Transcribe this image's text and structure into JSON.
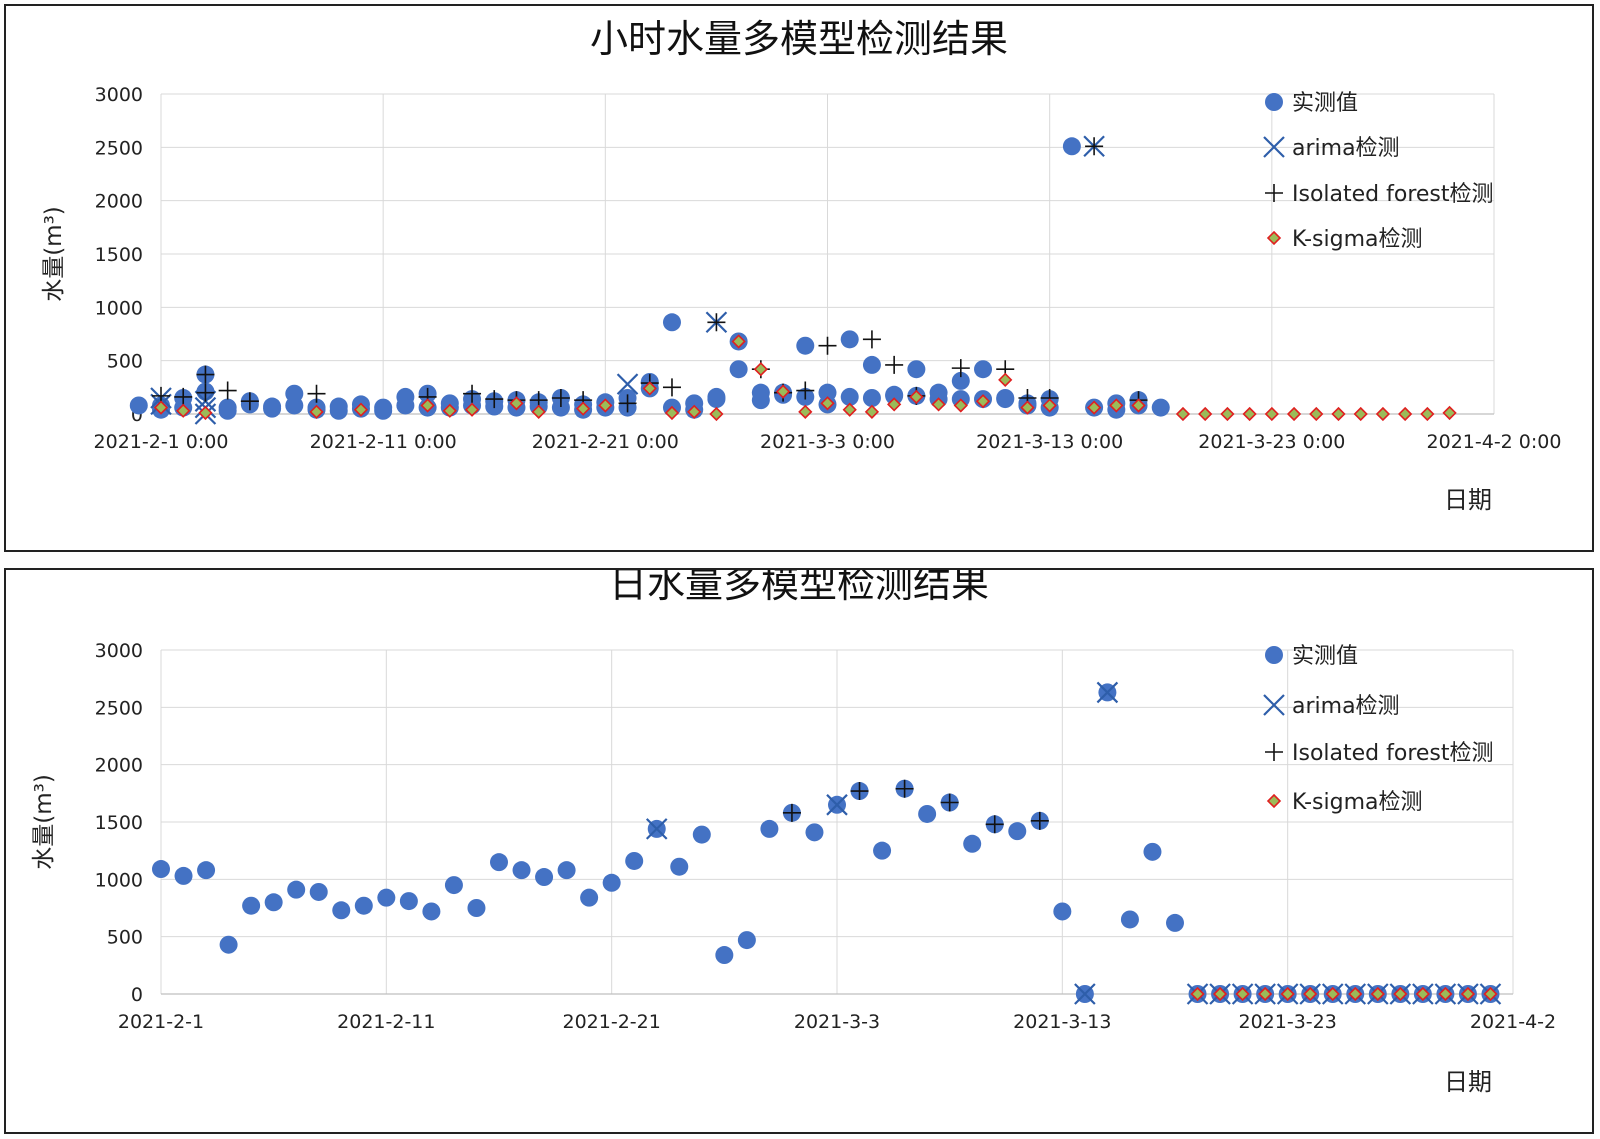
{
  "chart_data": [
    {
      "type": "scatter",
      "title": "小时水量多模型检测结果",
      "ylabel": "水量(m³)",
      "xlabel": "日期",
      "ylim": [
        0,
        3000
      ],
      "yticks": [
        0,
        500,
        1000,
        1500,
        2000,
        2500,
        3000
      ],
      "xticks": [
        "2021-2-1 0:00",
        "2021-2-11 0:00",
        "2021-2-21 0:00",
        "2021-3-3 0:00",
        "2021-3-13 0:00",
        "2021-3-23 0:00",
        "2021-4-2 0:00"
      ],
      "xlim": [
        "2021-02-01",
        "2021-04-02"
      ],
      "grid": true,
      "legend_position": "top-right",
      "legend": [
        "实测值",
        "arima检测",
        "Isolated forest检测",
        "K-sigma检测"
      ],
      "series": [
        {
          "name": "实测值",
          "x": [
            "2021-02-01",
            "2021-02-01",
            "2021-02-02",
            "2021-02-02",
            "2021-02-03",
            "2021-02-03",
            "2021-02-04",
            "2021-02-04",
            "2021-02-05",
            "2021-02-05",
            "2021-02-06",
            "2021-02-06",
            "2021-02-07",
            "2021-02-07",
            "2021-02-08",
            "2021-02-08",
            "2021-02-09",
            "2021-02-09",
            "2021-02-10",
            "2021-02-10",
            "2021-02-11",
            "2021-02-11",
            "2021-02-12",
            "2021-02-12",
            "2021-02-13",
            "2021-02-13",
            "2021-02-14",
            "2021-02-14",
            "2021-02-15",
            "2021-02-15",
            "2021-02-16",
            "2021-02-16",
            "2021-02-17",
            "2021-02-17",
            "2021-02-18",
            "2021-02-18",
            "2021-02-19",
            "2021-02-19",
            "2021-02-20",
            "2021-02-20",
            "2021-02-21",
            "2021-02-21",
            "2021-02-22",
            "2021-02-22",
            "2021-02-23",
            "2021-02-23",
            "2021-02-24",
            "2021-02-24",
            "2021-02-25",
            "2021-02-25",
            "2021-02-26",
            "2021-02-26",
            "2021-02-27",
            "2021-02-27",
            "2021-02-28",
            "2021-02-28",
            "2021-03-01",
            "2021-03-01",
            "2021-03-02",
            "2021-03-02",
            "2021-03-03",
            "2021-03-03",
            "2021-03-04",
            "2021-03-04",
            "2021-03-05",
            "2021-03-05",
            "2021-03-06",
            "2021-03-06",
            "2021-03-07",
            "2021-03-07",
            "2021-03-08",
            "2021-03-08",
            "2021-03-09",
            "2021-03-09",
            "2021-03-10",
            "2021-03-10",
            "2021-03-11",
            "2021-03-11",
            "2021-03-12",
            "2021-03-12",
            "2021-03-13",
            "2021-03-13",
            "2021-03-14",
            "2021-03-15",
            "2021-03-16",
            "2021-03-16",
            "2021-03-17",
            "2021-03-17",
            "2021-03-18",
            "2021-01-31"
          ],
          "values": [
            80,
            40,
            150,
            60,
            210,
            370,
            60,
            30,
            120,
            90,
            70,
            50,
            80,
            190,
            60,
            40,
            70,
            30,
            90,
            50,
            60,
            30,
            80,
            160,
            60,
            190,
            100,
            60,
            140,
            80,
            120,
            70,
            130,
            60,
            110,
            70,
            150,
            60,
            90,
            40,
            110,
            60,
            150,
            60,
            240,
            300,
            60,
            860,
            100,
            40,
            140,
            160,
            680,
            420,
            200,
            130,
            200,
            180,
            160,
            640,
            200,
            90,
            700,
            160,
            150,
            460,
            170,
            180,
            420,
            170,
            200,
            140,
            140,
            310,
            420,
            140,
            150,
            140,
            80,
            100,
            140,
            60,
            2510,
            60,
            100,
            40,
            80,
            130,
            60,
            80
          ]
        },
        {
          "name": "arima检测",
          "x": [
            "2021-02-01",
            "2021-02-01",
            "2021-02-03",
            "2021-02-03",
            "2021-02-03",
            "2021-02-22",
            "2021-02-26",
            "2021-03-15"
          ],
          "values": [
            150,
            90,
            120,
            60,
            0,
            280,
            860,
            2510
          ]
        },
        {
          "name": "Isolated forest检测",
          "x": [
            "2021-02-01",
            "2021-02-02",
            "2021-02-03",
            "2021-02-03",
            "2021-02-04",
            "2021-02-05",
            "2021-02-08",
            "2021-02-13",
            "2021-02-15",
            "2021-02-16",
            "2021-02-17",
            "2021-02-18",
            "2021-02-19",
            "2021-02-20",
            "2021-02-22",
            "2021-02-23",
            "2021-02-24",
            "2021-02-26",
            "2021-02-28",
            "2021-03-01",
            "2021-03-02",
            "2021-03-03",
            "2021-03-05",
            "2021-03-06",
            "2021-03-07",
            "2021-03-09",
            "2021-03-11",
            "2021-03-12",
            "2021-03-13",
            "2021-03-15",
            "2021-03-17"
          ],
          "values": [
            170,
            160,
            200,
            370,
            220,
            120,
            190,
            160,
            190,
            140,
            130,
            130,
            150,
            130,
            100,
            290,
            250,
            860,
            420,
            200,
            220,
            640,
            700,
            460,
            170,
            430,
            420,
            150,
            150,
            2510,
            130
          ]
        },
        {
          "name": "K-sigma检测",
          "x": [
            "2021-02-01",
            "2021-02-02",
            "2021-02-03",
            "2021-02-08",
            "2021-02-10",
            "2021-02-13",
            "2021-02-14",
            "2021-02-15",
            "2021-02-17",
            "2021-02-18",
            "2021-02-20",
            "2021-02-21",
            "2021-02-23",
            "2021-02-24",
            "2021-02-25",
            "2021-02-26",
            "2021-02-27",
            "2021-02-28",
            "2021-03-01",
            "2021-03-02",
            "2021-03-03",
            "2021-03-04",
            "2021-03-05",
            "2021-03-06",
            "2021-03-07",
            "2021-03-08",
            "2021-03-09",
            "2021-03-10",
            "2021-03-11",
            "2021-03-12",
            "2021-03-13",
            "2021-03-15",
            "2021-03-16",
            "2021-03-17",
            "2021-03-19",
            "2021-03-20",
            "2021-03-21",
            "2021-03-22",
            "2021-03-23",
            "2021-03-24",
            "2021-03-25",
            "2021-03-26",
            "2021-03-27",
            "2021-03-28",
            "2021-03-29",
            "2021-03-30",
            "2021-03-31"
          ],
          "values": [
            60,
            30,
            10,
            20,
            40,
            80,
            30,
            40,
            100,
            20,
            50,
            80,
            240,
            10,
            20,
            0,
            680,
            420,
            210,
            20,
            100,
            40,
            20,
            90,
            160,
            90,
            80,
            120,
            320,
            60,
            80,
            60,
            80,
            80,
            0,
            0,
            0,
            0,
            0,
            0,
            0,
            0,
            0,
            0,
            0,
            0,
            10
          ]
        }
      ]
    },
    {
      "type": "scatter",
      "title": "日水量多模型检测结果",
      "ylabel": "水量(m³)",
      "xlabel": "日期",
      "ylim": [
        0,
        3000
      ],
      "yticks": [
        0,
        500,
        1000,
        1500,
        2000,
        2500,
        3000
      ],
      "xticks": [
        "2021-2-1",
        "2021-2-11",
        "2021-2-21",
        "2021-3-3",
        "2021-3-13",
        "2021-3-23",
        "2021-4-2"
      ],
      "xlim": [
        "2021-02-01",
        "2021-04-02"
      ],
      "grid": true,
      "legend_position": "top-right",
      "legend": [
        "实测值",
        "arima检测",
        "Isolated forest检测",
        "K-sigma检测"
      ],
      "series": [
        {
          "name": "实测值",
          "x": [
            "2021-02-01",
            "2021-02-02",
            "2021-02-03",
            "2021-02-04",
            "2021-02-05",
            "2021-02-06",
            "2021-02-07",
            "2021-02-08",
            "2021-02-09",
            "2021-02-10",
            "2021-02-11",
            "2021-02-12",
            "2021-02-13",
            "2021-02-14",
            "2021-02-15",
            "2021-02-16",
            "2021-02-17",
            "2021-02-18",
            "2021-02-19",
            "2021-02-20",
            "2021-02-21",
            "2021-02-22",
            "2021-02-23",
            "2021-02-24",
            "2021-02-25",
            "2021-02-26",
            "2021-02-27",
            "2021-02-28",
            "2021-03-01",
            "2021-03-02",
            "2021-03-03",
            "2021-03-04",
            "2021-03-05",
            "2021-03-06",
            "2021-03-07",
            "2021-03-08",
            "2021-03-09",
            "2021-03-10",
            "2021-03-11",
            "2021-03-12",
            "2021-03-13",
            "2021-03-14",
            "2021-03-15",
            "2021-03-16",
            "2021-03-17",
            "2021-03-18",
            "2021-03-19",
            "2021-03-20",
            "2021-03-21",
            "2021-03-22",
            "2021-03-23",
            "2021-03-24",
            "2021-03-25",
            "2021-03-26",
            "2021-03-27",
            "2021-03-28",
            "2021-03-29",
            "2021-03-30",
            "2021-03-31",
            "2021-04-01"
          ],
          "values": [
            1090,
            1030,
            1080,
            430,
            770,
            800,
            910,
            890,
            730,
            770,
            840,
            810,
            720,
            950,
            750,
            1150,
            1080,
            1020,
            1080,
            840,
            970,
            1160,
            1440,
            1110,
            1390,
            340,
            470,
            1440,
            1580,
            1410,
            1650,
            1770,
            1250,
            1790,
            1570,
            1670,
            1310,
            1480,
            1420,
            1510,
            720,
            0,
            2630,
            650,
            1240,
            620,
            0,
            0,
            0,
            0,
            0,
            0,
            0,
            0,
            0,
            0,
            0,
            0,
            0,
            0
          ]
        },
        {
          "name": "arima检测",
          "x": [
            "2021-02-23",
            "2021-03-03",
            "2021-03-14",
            "2021-03-15",
            "2021-03-19",
            "2021-03-20",
            "2021-03-21",
            "2021-03-22",
            "2021-03-23",
            "2021-03-24",
            "2021-03-25",
            "2021-03-26",
            "2021-03-27",
            "2021-03-28",
            "2021-03-29",
            "2021-03-30",
            "2021-03-31",
            "2021-04-01"
          ],
          "values": [
            1440,
            1650,
            0,
            2630,
            0,
            0,
            0,
            0,
            0,
            0,
            0,
            0,
            0,
            0,
            0,
            0,
            0,
            0
          ]
        },
        {
          "name": "Isolated forest检测",
          "x": [
            "2021-03-01",
            "2021-03-04",
            "2021-03-06",
            "2021-03-08",
            "2021-03-10",
            "2021-03-12"
          ],
          "values": [
            1580,
            1770,
            1790,
            1670,
            1480,
            1510
          ]
        },
        {
          "name": "K-sigma检测",
          "x": [
            "2021-03-19",
            "2021-03-20",
            "2021-03-21",
            "2021-03-22",
            "2021-03-23",
            "2021-03-24",
            "2021-03-25",
            "2021-03-26",
            "2021-03-27",
            "2021-03-28",
            "2021-03-29",
            "2021-03-30",
            "2021-03-31",
            "2021-04-01"
          ],
          "values": [
            0,
            0,
            0,
            0,
            0,
            0,
            0,
            0,
            0,
            0,
            0,
            0,
            0,
            0
          ]
        }
      ]
    }
  ],
  "colors": {
    "observed": "#4472C4",
    "arima": "#2E5EAA",
    "iforest": "#111111",
    "ksigma_fill": "#9BBB59",
    "ksigma_edge": "#E02020",
    "grid": "#D9D9D9"
  }
}
